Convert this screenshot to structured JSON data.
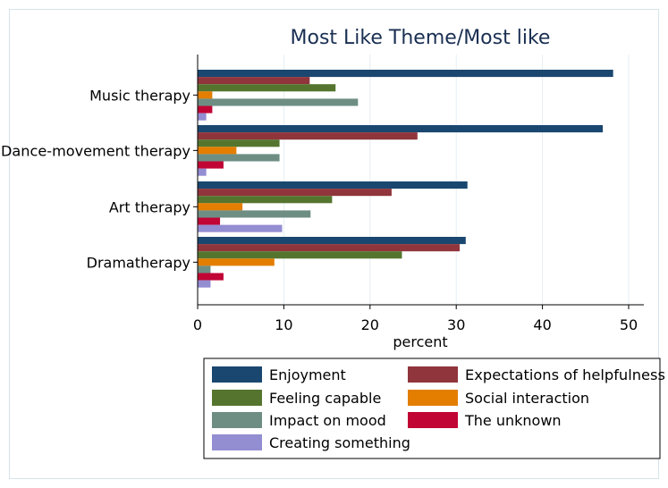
{
  "chart_data": {
    "type": "bar",
    "orientation": "horizontal",
    "title": "Most Like Theme/Most like",
    "xlabel": "percent",
    "ylabel": "",
    "xlim": [
      0,
      52
    ],
    "xticks": [
      "0",
      "10",
      "20",
      "30",
      "40",
      "50"
    ],
    "grid": true,
    "legend_position": "bottom",
    "categories": [
      "Music therapy",
      "Dance-movement therapy",
      "Art therapy",
      "Dramatherapy"
    ],
    "series": [
      {
        "name": "Enjoyment",
        "color": "#1a476f",
        "values": [
          48.2,
          47.0,
          31.3,
          31.1
        ]
      },
      {
        "name": "Expectations of helpfulness",
        "color": "#90353b",
        "values": [
          13.0,
          25.5,
          22.5,
          30.4
        ]
      },
      {
        "name": "Feeling capable",
        "color": "#55752f",
        "values": [
          16.0,
          9.5,
          15.6,
          23.7
        ]
      },
      {
        "name": "Social interaction",
        "color": "#e37e00",
        "values": [
          1.7,
          4.5,
          5.2,
          8.9
        ]
      },
      {
        "name": "Impact on mood",
        "color": "#6e8e84",
        "values": [
          18.6,
          9.5,
          13.1,
          1.5
        ]
      },
      {
        "name": "The unknown",
        "color": "#c10534",
        "values": [
          1.7,
          3.0,
          2.6,
          3.0
        ]
      },
      {
        "name": "Creating something",
        "color": "#938dd2",
        "values": [
          1.0,
          1.0,
          9.8,
          1.5
        ]
      }
    ]
  }
}
